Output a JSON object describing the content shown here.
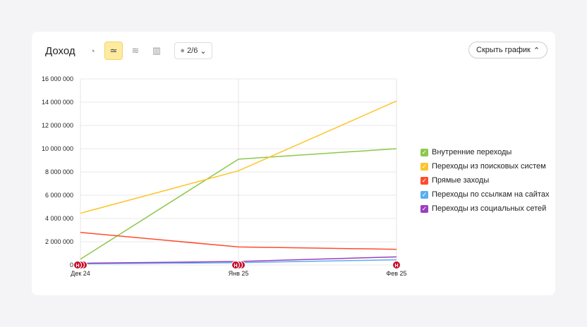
{
  "header": {
    "title": "Доход",
    "dropdown": "2/6",
    "hide_button": "Скрыть график",
    "icons": [
      "pie-chart-icon",
      "line-chart-icon",
      "stacked-area-icon",
      "bar-chart-icon"
    ]
  },
  "chart_data": {
    "type": "line",
    "categories": [
      "Дек 24",
      "Янв 25",
      "Фев 25"
    ],
    "yticks": [
      "0",
      "2 000 000",
      "4 000 000",
      "6 000 000",
      "8 000 000",
      "10 000 000",
      "12 000 000",
      "14 000 000",
      "16 000 000"
    ],
    "ylim": [
      0,
      16000000
    ],
    "grid": true,
    "legend_position": "right",
    "series": [
      {
        "name": "Внутренние переходы",
        "color": "#8cc84b",
        "values": [
          500000,
          9100000,
          10000000
        ]
      },
      {
        "name": "Переходы из поисковых систем",
        "color": "#fcc52b",
        "values": [
          4450000,
          8100000,
          14100000
        ]
      },
      {
        "name": "Прямые заходы",
        "color": "#ff4c2c",
        "values": [
          2800000,
          1550000,
          1350000
        ]
      },
      {
        "name": "Переходы по ссылкам на сайтах",
        "color": "#5aaef0",
        "values": [
          100000,
          200000,
          450000
        ]
      },
      {
        "name": "Переходы из социальных сетей",
        "color": "#9b3fbf",
        "values": [
          150000,
          300000,
          700000
        ]
      }
    ],
    "annotation_marker": "Н"
  }
}
